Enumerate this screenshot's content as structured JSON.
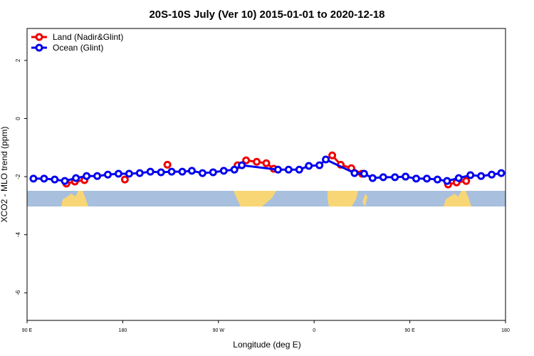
{
  "chart_data": {
    "type": "line",
    "title": "20S-10S July (Ver 10)   2015-01-01 to 2020-12-18",
    "xlabel": "Longitude (deg E)",
    "ylabel": "XCO2 - MLO trend (ppm)",
    "xlim": [
      90,
      540
    ],
    "ylim": [
      -6.95,
      3.1
    ],
    "xticks": [
      {
        "value": 90,
        "label": "90 E"
      },
      {
        "value": 180,
        "label": "180"
      },
      {
        "value": 270,
        "label": "90 W"
      },
      {
        "value": 360,
        "label": "0"
      },
      {
        "value": 450,
        "label": "90 E"
      },
      {
        "value": 540,
        "label": "180"
      }
    ],
    "yticks": [
      -6,
      -4,
      -2,
      0,
      2
    ],
    "legend": "top-left",
    "series": [
      {
        "name": "Land (Nadir&Glint)",
        "color": "#ee0000",
        "x": [
          127,
          135,
          144,
          null,
          182,
          null,
          222,
          null,
          288,
          296,
          306,
          315,
          322,
          null,
          377,
          385,
          395,
          405,
          null,
          486,
          494,
          503
        ],
        "values": [
          -2.24,
          -2.17,
          -2.12,
          null,
          -2.1,
          null,
          -1.59,
          null,
          -1.61,
          -1.44,
          -1.49,
          -1.54,
          -1.73,
          null,
          -1.27,
          -1.59,
          -1.71,
          -1.9,
          null,
          -2.27,
          -2.2,
          -2.15
        ]
      },
      {
        "name": "Ocean (Glint)",
        "color": "#0000ee",
        "x": [
          96,
          106,
          116,
          125.5,
          136,
          146,
          156,
          166,
          176,
          186,
          196,
          206,
          216,
          226,
          236,
          245,
          255,
          265,
          275,
          285,
          292,
          326,
          336,
          346,
          355,
          365,
          371,
          398,
          407,
          415,
          425,
          436,
          446,
          456,
          466,
          476,
          485,
          496,
          507,
          517,
          527,
          536
        ],
        "values": [
          -2.07,
          -2.07,
          -2.1,
          -2.15,
          -2.05,
          -1.98,
          -1.98,
          -1.93,
          -1.9,
          -1.9,
          -1.88,
          -1.83,
          -1.85,
          -1.83,
          -1.83,
          -1.8,
          -1.88,
          -1.85,
          -1.8,
          -1.76,
          -1.61,
          -1.76,
          -1.76,
          -1.76,
          -1.63,
          -1.61,
          -1.41,
          -1.88,
          -1.9,
          -2.05,
          -2.02,
          -2.02,
          -2.0,
          -2.07,
          -2.07,
          -2.1,
          -2.15,
          -2.05,
          -1.95,
          -1.98,
          -1.93,
          -1.88
        ]
      }
    ]
  }
}
